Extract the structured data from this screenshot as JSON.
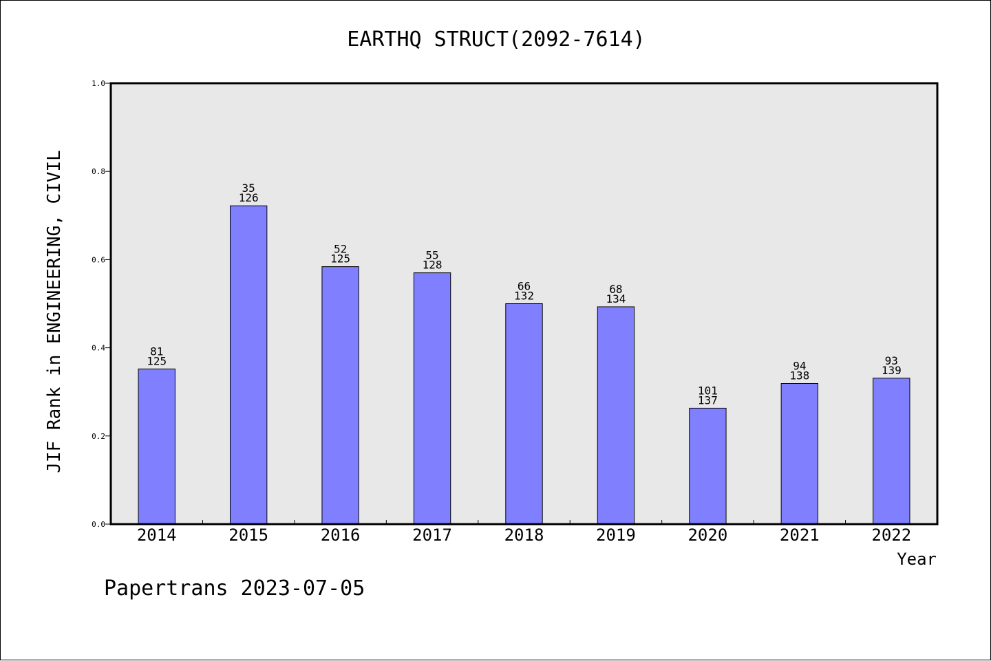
{
  "chart_data": {
    "type": "bar",
    "title": "EARTHQ STRUCT(2092-7614)",
    "xlabel": "Year",
    "ylabel": "JIF Rank in ENGINEERING, CIVIL",
    "categories": [
      "2014",
      "2015",
      "2016",
      "2017",
      "2018",
      "2019",
      "2020",
      "2021",
      "2022"
    ],
    "values": [
      0.352,
      0.722,
      0.584,
      0.57,
      0.5,
      0.493,
      0.263,
      0.319,
      0.331
    ],
    "rank": [
      "81",
      "35",
      "52",
      "55",
      "66",
      "68",
      "101",
      "94",
      "93"
    ],
    "total": [
      "125",
      "126",
      "125",
      "128",
      "132",
      "134",
      "137",
      "138",
      "139"
    ],
    "ylim": [
      0.0,
      1.0
    ],
    "yticks": [
      "0.0",
      "0.2",
      "0.4",
      "0.6",
      "0.8",
      "1.0"
    ],
    "grid": false,
    "legend": "none",
    "colors": {
      "bar_fill": "#8080ff",
      "plot_bg": "#e8e8e8"
    }
  },
  "footer": {
    "text": "Papertrans 2023-07-05"
  }
}
